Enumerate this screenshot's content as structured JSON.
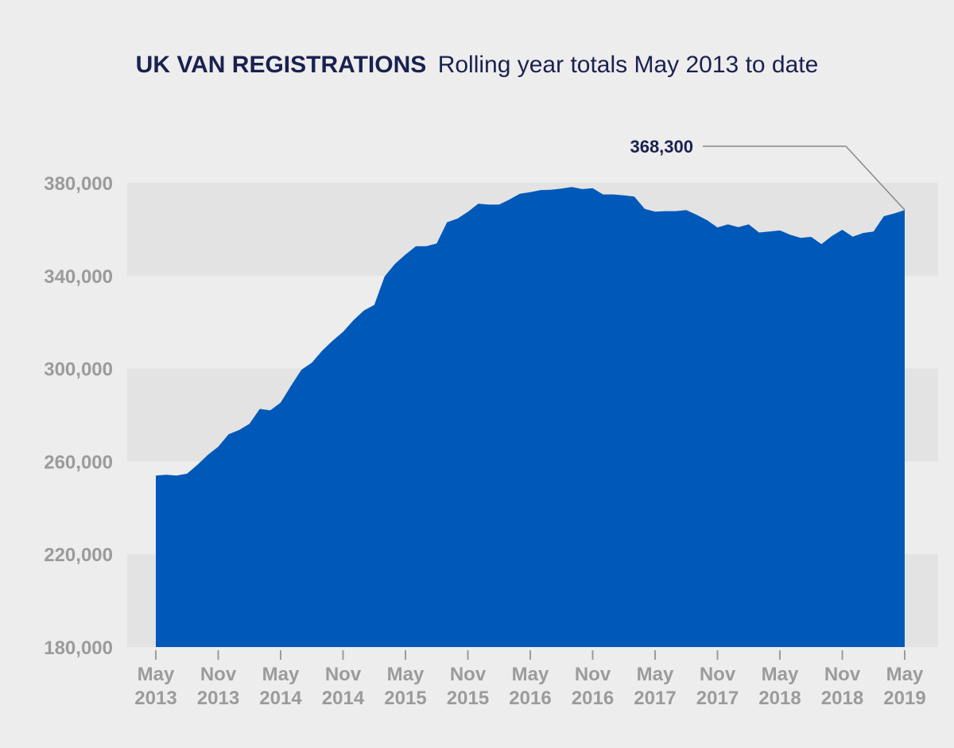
{
  "chart_data": {
    "type": "area",
    "title": "UK VAN REGISTRATIONS",
    "subtitle": "Rolling year totals May 2013 to date",
    "xlabel": "",
    "ylabel": "",
    "ylim": [
      180000,
      380000
    ],
    "yticks": [
      380000,
      340000,
      300000,
      260000,
      220000,
      180000
    ],
    "ytick_labels": [
      "380,000",
      "340,000",
      "300,000",
      "260,000",
      "220,000",
      "180,000"
    ],
    "xtick_labels": [
      {
        "month": "May",
        "year": "2013"
      },
      {
        "month": "Nov",
        "year": "2013"
      },
      {
        "month": "May",
        "year": "2014"
      },
      {
        "month": "Nov",
        "year": "2014"
      },
      {
        "month": "May",
        "year": "2015"
      },
      {
        "month": "Nov",
        "year": "2015"
      },
      {
        "month": "May",
        "year": "2016"
      },
      {
        "month": "Nov",
        "year": "2016"
      },
      {
        "month": "May",
        "year": "2017"
      },
      {
        "month": "Nov",
        "year": "2017"
      },
      {
        "month": "May",
        "year": "2018"
      },
      {
        "month": "Nov",
        "year": "2018"
      },
      {
        "month": "May",
        "year": "2019"
      }
    ],
    "grid": "alternating horizontal bands",
    "color": "#0059b8",
    "series": [
      {
        "name": "",
        "values": [
          253900,
          254200,
          253900,
          254700,
          258500,
          262800,
          266300,
          271700,
          273500,
          276200,
          282600,
          282000,
          285300,
          292600,
          299500,
          302500,
          307700,
          312000,
          315800,
          320800,
          325000,
          327400,
          339700,
          345100,
          349100,
          352700,
          352700,
          353900,
          363000,
          364600,
          367500,
          371000,
          370600,
          370600,
          372800,
          375300,
          376000,
          376900,
          377000,
          377500,
          378200,
          377300,
          377700,
          375000,
          375000,
          374600,
          374100,
          368800,
          367600,
          367800,
          367800,
          368300,
          366200,
          363900,
          360800,
          362100,
          360900,
          362100,
          358600,
          359000,
          359500,
          357600,
          356300,
          356700,
          353600,
          357100,
          359800,
          356800,
          358400,
          359000,
          365600,
          366800,
          368300
        ]
      }
    ],
    "annotations": [
      {
        "text": "368,300",
        "value": 368300,
        "target": "May 2019"
      }
    ]
  }
}
